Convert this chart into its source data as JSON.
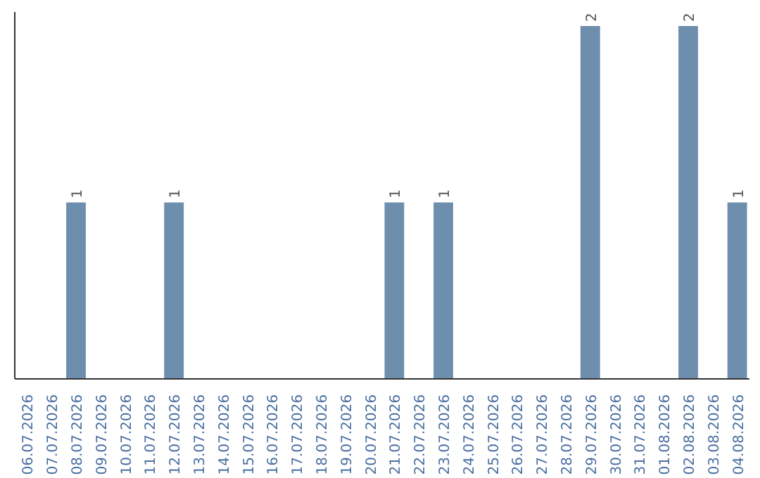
{
  "chart_data": {
    "type": "bar",
    "categories": [
      "06.07.2026",
      "07.07.2026",
      "08.07.2026",
      "09.07.2026",
      "10.07.2026",
      "11.07.2026",
      "12.07.2026",
      "13.07.2026",
      "14.07.2026",
      "15.07.2026",
      "16.07.2026",
      "17.07.2026",
      "18.07.2026",
      "19.07.2026",
      "20.07.2026",
      "21.07.2026",
      "22.07.2026",
      "23.07.2026",
      "24.07.2026",
      "25.07.2026",
      "26.07.2026",
      "27.07.2026",
      "28.07.2026",
      "29.07.2026",
      "30.07.2026",
      "31.07.2026",
      "01.08.2026",
      "02.08.2026",
      "03.08.2026",
      "04.08.2026"
    ],
    "values": [
      0,
      0,
      1,
      0,
      0,
      0,
      1,
      0,
      0,
      0,
      0,
      0,
      0,
      0,
      0,
      1,
      0,
      1,
      0,
      0,
      0,
      0,
      0,
      2,
      0,
      0,
      0,
      2,
      0,
      1
    ],
    "value_labels": [
      null,
      null,
      "1",
      null,
      null,
      null,
      "1",
      null,
      null,
      null,
      null,
      null,
      null,
      null,
      null,
      "1",
      null,
      "1",
      null,
      null,
      null,
      null,
      null,
      "2",
      null,
      null,
      null,
      "2",
      null,
      "1"
    ],
    "color": "#6d8fad",
    "grid": false,
    "tick_labels": "x"
  }
}
